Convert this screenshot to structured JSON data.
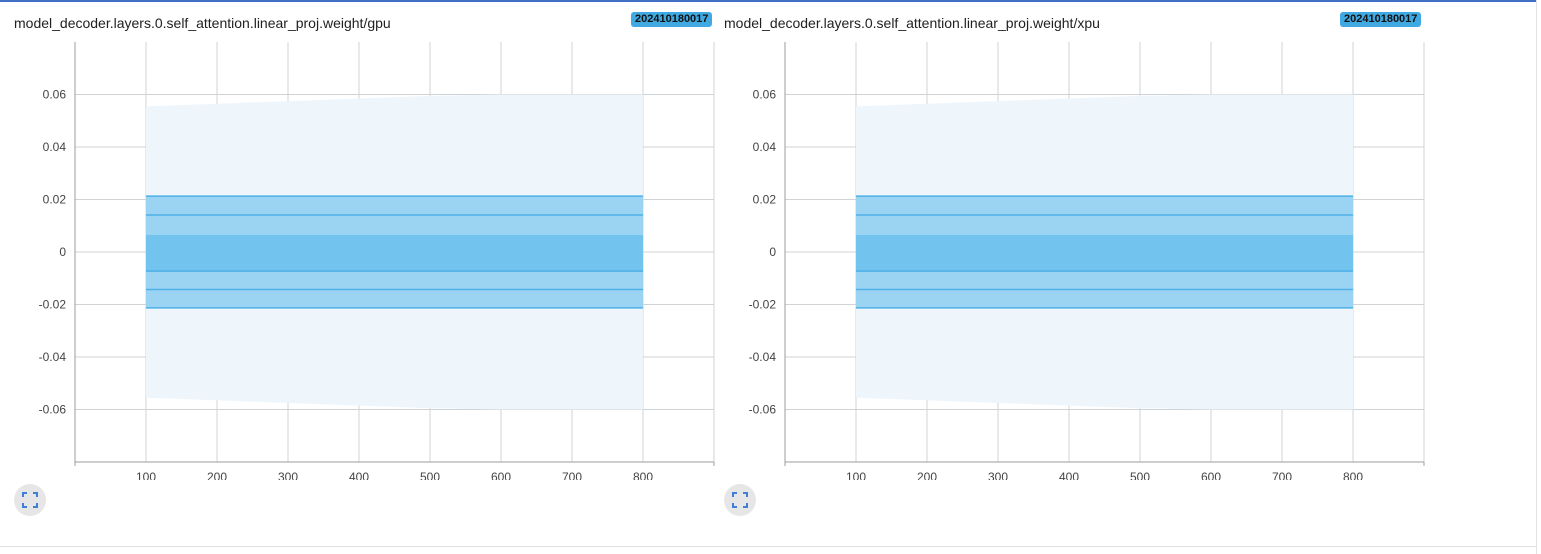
{
  "cards": [
    {
      "title": "model_decoder.layers.0.self_attention.linear_proj.weight/gpu",
      "run_badge": "202410180017",
      "expand_icon": "fullscreen-icon"
    },
    {
      "title": "model_decoder.layers.0.self_attention.linear_proj.weight/xpu",
      "run_badge": "202410180017",
      "expand_icon": "fullscreen-icon"
    }
  ],
  "colors": {
    "band_outer": "#eef6fc",
    "band_mid": "#9bd4f3",
    "band_inner": "#72c3ee",
    "band_line": "#4eb0e6",
    "grid": "#cfd3d6",
    "badge": "#41a9e1"
  },
  "chart_data": [
    {
      "type": "area",
      "title": "model_decoder.layers.0.self_attention.linear_proj.weight/gpu",
      "xlim": [
        0,
        900
      ],
      "ylim": [
        -0.08,
        0.08
      ],
      "x_ticks": [
        100,
        200,
        300,
        400,
        500,
        600,
        700,
        800
      ],
      "x_tick_labels": [
        "100",
        "200",
        "300",
        "400",
        "500",
        "600",
        "700",
        "800"
      ],
      "y_ticks": [
        0.06,
        0.04,
        0.02,
        0,
        -0.02,
        -0.04,
        -0.06
      ],
      "y_tick_labels": [
        "0.06",
        "0.04",
        "0.02",
        "0",
        "-0.02",
        "-0.04",
        "-0.06"
      ],
      "grid": true,
      "x": [
        100,
        200,
        300,
        400,
        500,
        600,
        700,
        800
      ],
      "bands": [
        {
          "lower": [
            -0.0555,
            -0.0565,
            -0.0575,
            -0.0585,
            -0.0595,
            -0.06,
            -0.06,
            -0.06
          ],
          "upper": [
            0.0555,
            0.0565,
            0.0575,
            0.0585,
            0.0595,
            0.06,
            0.06,
            0.06
          ]
        },
        {
          "lower": [
            -0.0213,
            -0.0213,
            -0.0213,
            -0.0213,
            -0.0213,
            -0.0213,
            -0.0213,
            -0.0213
          ],
          "upper": [
            0.0213,
            0.0213,
            0.0213,
            0.0213,
            0.0213,
            0.0213,
            0.0213,
            0.0213
          ]
        },
        {
          "lower": [
            -0.0073,
            -0.0073,
            -0.0073,
            -0.0073,
            -0.0073,
            -0.0073,
            -0.0073,
            -0.0073
          ],
          "upper": [
            0.0065,
            0.0065,
            0.0065,
            0.0065,
            0.0065,
            0.0065,
            0.0065,
            0.0065
          ]
        }
      ],
      "lines": [
        [
          0.0213,
          0.0213,
          0.0213,
          0.0213,
          0.0213,
          0.0213,
          0.0213,
          0.0213
        ],
        [
          0.0141,
          0.0141,
          0.0141,
          0.0141,
          0.0141,
          0.0141,
          0.0141,
          0.0141
        ],
        [
          -0.0073,
          -0.0073,
          -0.0073,
          -0.0073,
          -0.0073,
          -0.0073,
          -0.0073,
          -0.0073
        ],
        [
          -0.0143,
          -0.0143,
          -0.0143,
          -0.0143,
          -0.0143,
          -0.0143,
          -0.0143,
          -0.0143
        ],
        [
          -0.0213,
          -0.0213,
          -0.0213,
          -0.0213,
          -0.0213,
          -0.0213,
          -0.0213,
          -0.0213
        ]
      ]
    },
    {
      "type": "area",
      "title": "model_decoder.layers.0.self_attention.linear_proj.weight/xpu",
      "xlim": [
        0,
        900
      ],
      "ylim": [
        -0.08,
        0.08
      ],
      "x_ticks": [
        100,
        200,
        300,
        400,
        500,
        600,
        700,
        800
      ],
      "x_tick_labels": [
        "100",
        "200",
        "300",
        "400",
        "500",
        "600",
        "700",
        "800"
      ],
      "y_ticks": [
        0.06,
        0.04,
        0.02,
        0,
        -0.02,
        -0.04,
        -0.06
      ],
      "y_tick_labels": [
        "0.06",
        "0.04",
        "0.02",
        "0",
        "-0.02",
        "-0.04",
        "-0.06"
      ],
      "grid": true,
      "x": [
        100,
        200,
        300,
        400,
        500,
        600,
        700,
        800
      ],
      "bands": [
        {
          "lower": [
            -0.0555,
            -0.0565,
            -0.0575,
            -0.0585,
            -0.0595,
            -0.06,
            -0.06,
            -0.06
          ],
          "upper": [
            0.0555,
            0.0565,
            0.0575,
            0.0585,
            0.0595,
            0.06,
            0.06,
            0.06
          ]
        },
        {
          "lower": [
            -0.0213,
            -0.0213,
            -0.0213,
            -0.0213,
            -0.0213,
            -0.0213,
            -0.0213,
            -0.0213
          ],
          "upper": [
            0.0213,
            0.0213,
            0.0213,
            0.0213,
            0.0213,
            0.0213,
            0.0213,
            0.0213
          ]
        },
        {
          "lower": [
            -0.0073,
            -0.0073,
            -0.0073,
            -0.0073,
            -0.0073,
            -0.0073,
            -0.0073,
            -0.0073
          ],
          "upper": [
            0.0065,
            0.0065,
            0.0065,
            0.0065,
            0.0065,
            0.0065,
            0.0065,
            0.0065
          ]
        }
      ],
      "lines": [
        [
          0.0213,
          0.0213,
          0.0213,
          0.0213,
          0.0213,
          0.0213,
          0.0213,
          0.0213
        ],
        [
          0.0141,
          0.0141,
          0.0141,
          0.0141,
          0.0141,
          0.0141,
          0.0141,
          0.0141
        ],
        [
          -0.0073,
          -0.0073,
          -0.0073,
          -0.0073,
          -0.0073,
          -0.0073,
          -0.0073,
          -0.0073
        ],
        [
          -0.0143,
          -0.0143,
          -0.0143,
          -0.0143,
          -0.0143,
          -0.0143,
          -0.0143,
          -0.0143
        ],
        [
          -0.0213,
          -0.0213,
          -0.0213,
          -0.0213,
          -0.0213,
          -0.0213,
          -0.0213,
          -0.0213
        ]
      ]
    }
  ]
}
